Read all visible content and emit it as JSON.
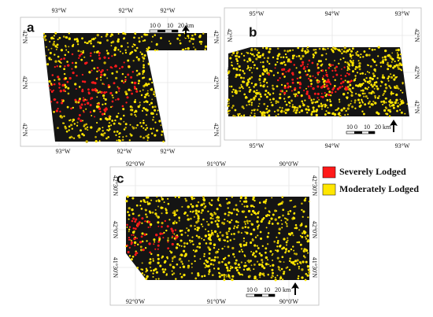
{
  "panels": [
    {
      "label": "a",
      "top_labels": [
        "93°W",
        "92°W",
        "92°W"
      ],
      "bottom_labels": [
        "93°W",
        "92°W",
        "92°W"
      ],
      "left_labels": [
        "42°N",
        "42°N",
        "42°N"
      ],
      "right_labels": [
        "42°N",
        "42°N",
        "42°N"
      ],
      "scale": [
        "10",
        "0",
        "10",
        "20 km"
      ]
    },
    {
      "label": "b",
      "top_labels": [
        "95°W",
        "94°W",
        "93°W"
      ],
      "bottom_labels": [
        "95°W",
        "94°W",
        "93°W"
      ],
      "left_labels": [
        "42°N",
        "42°N",
        "42°N"
      ],
      "right_labels": [
        "42°N",
        "42°N",
        "42°N"
      ],
      "scale": [
        "10",
        "0",
        "10",
        "20 km"
      ]
    },
    {
      "label": "c",
      "top_labels": [
        "92°0'W",
        "91°0'W",
        "90°0'W"
      ],
      "bottom_labels": [
        "92°0'W",
        "91°0'W",
        "90°0'W"
      ],
      "left_labels": [
        "42°30'N",
        "42°0'N",
        "41°30'N"
      ],
      "right_labels": [
        "42°30'N",
        "42°0'N",
        "41°30'N"
      ],
      "scale": [
        "10",
        "0",
        "10",
        "20 km"
      ]
    }
  ],
  "legend": [
    {
      "label": "Severely Lodged",
      "color": "#ff1a1a"
    },
    {
      "label": "Moderately Lodged",
      "color": "#ffe600"
    }
  ]
}
